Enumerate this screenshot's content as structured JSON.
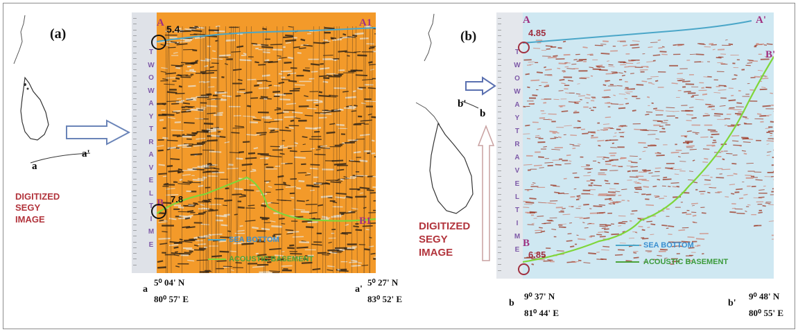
{
  "panel_a": {
    "label": "(a)",
    "digitized": [
      "DIGITIZED",
      "SEGY",
      "IMAGE"
    ],
    "map_label_a": "a",
    "map_label_a_prime": "a'",
    "top_left_marker": "A",
    "top_right_marker": "A1",
    "bottom_left_marker": "B",
    "bottom_right_marker": "B1",
    "seabed_time": "5.4",
    "basement_time": "7.8",
    "axis_letters": [
      "T",
      "W",
      "O",
      "W",
      "A",
      "Y",
      "T",
      "R",
      "A",
      "V",
      "E",
      "L",
      "T",
      "I",
      "M",
      "E"
    ],
    "legend_sea_bottom": "SEA BOTTOM",
    "legend_basement": "ACOUSTIC BASEMENT",
    "start_letter": "a",
    "start_lat": "5⁰ 04'  N",
    "start_lon": "80⁰ 57' E",
    "end_letter": "a'",
    "end_lat": "5⁰ 27' N",
    "end_lon": "83⁰ 52' E"
  },
  "panel_b": {
    "label": "(b)",
    "digitized": [
      "DIGITIZED",
      "SEGY",
      "IMAGE"
    ],
    "map_label_b": "b",
    "map_label_b_prime": "b'",
    "top_left_marker": "A",
    "top_right_marker": "A'",
    "bottom_left_marker": "B",
    "bottom_right_marker": "B'",
    "seabed_time": "4.85",
    "basement_time": "6.85",
    "axis_letters": [
      "T",
      "W",
      "O",
      "W",
      "A",
      "Y",
      "T",
      "R",
      "A",
      "V",
      "E",
      "L",
      "T",
      "I",
      "M",
      "E"
    ],
    "legend_sea_bottom": "SEA BOTTOM",
    "legend_basement": "ACOUSTIC BASEMENT",
    "start_letter": "b",
    "start_lat": "9⁰ 37' N",
    "start_lon": "81⁰ 44' E",
    "end_letter": "b'",
    "end_lat": "9⁰ 48' N",
    "end_lon": "80⁰ 55' E"
  },
  "colors": {
    "seismic_a_bg": "#f39a2a",
    "seismic_b_bg": "#cfe8f2",
    "sea_bottom_line": "#4aa6c8",
    "basement_line": "#7fd63a",
    "marker": "#a03080",
    "time_label": "#111111"
  }
}
